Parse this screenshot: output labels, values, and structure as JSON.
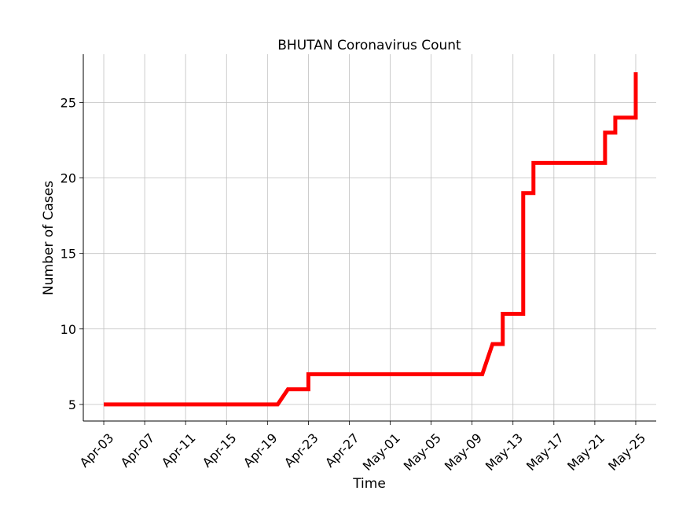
{
  "chart_data": {
    "type": "line",
    "title": "BHUTAN Coronavirus Count",
    "xlabel": "Time",
    "ylabel": "Number of Cases",
    "grid": true,
    "x_tick_labels": [
      "Apr-03",
      "Apr-07",
      "Apr-11",
      "Apr-15",
      "Apr-19",
      "Apr-23",
      "Apr-27",
      "May-01",
      "May-05",
      "May-09",
      "May-13",
      "May-17",
      "May-21",
      "May-25"
    ],
    "y_ticks": [
      5,
      10,
      15,
      20,
      25
    ],
    "ylim": [
      3.9,
      28.2
    ],
    "xlim": [
      "2020-04-01",
      "2020-05-27"
    ],
    "series": [
      {
        "color": "#ff0000",
        "points": [
          {
            "x": "2020-04-03",
            "y": 5
          },
          {
            "x": "2020-04-20",
            "y": 5
          },
          {
            "x": "2020-04-21",
            "y": 6
          },
          {
            "x": "2020-04-22",
            "y": 6
          },
          {
            "x": "2020-04-23",
            "y": 6
          },
          {
            "x": "2020-04-23",
            "y": 7
          },
          {
            "x": "2020-05-10",
            "y": 7
          },
          {
            "x": "2020-05-11",
            "y": 9
          },
          {
            "x": "2020-05-12",
            "y": 9
          },
          {
            "x": "2020-05-12",
            "y": 11
          },
          {
            "x": "2020-05-13",
            "y": 11
          },
          {
            "x": "2020-05-14",
            "y": 11
          },
          {
            "x": "2020-05-14",
            "y": 19
          },
          {
            "x": "2020-05-15",
            "y": 19
          },
          {
            "x": "2020-05-15",
            "y": 21
          },
          {
            "x": "2020-05-22",
            "y": 21
          },
          {
            "x": "2020-05-22",
            "y": 23
          },
          {
            "x": "2020-05-23",
            "y": 23
          },
          {
            "x": "2020-05-23",
            "y": 24
          },
          {
            "x": "2020-05-25",
            "y": 24
          },
          {
            "x": "2020-05-25",
            "y": 27
          }
        ]
      }
    ]
  }
}
